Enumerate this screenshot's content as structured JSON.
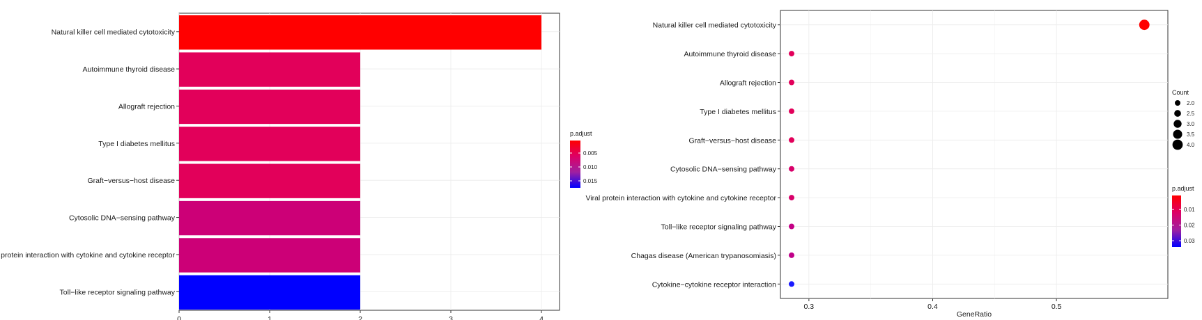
{
  "chart_data": [
    {
      "type": "bar",
      "title": "",
      "xlabel": "",
      "ylabel": "",
      "xlim": [
        0,
        4.2
      ],
      "x_ticks": [
        0,
        1,
        2,
        3,
        4
      ],
      "grid": true,
      "categories": [
        "Natural killer cell mediated cytotoxicity",
        "Autoimmune thyroid disease",
        "Allograft rejection",
        "Type I diabetes mellitus",
        "Graft−versus−host disease",
        "Cytosolic DNA−sensing pathway",
        "Viral protein interaction with cytokine and cytokine receptor",
        "Toll−like receptor signaling pathway"
      ],
      "values": [
        4,
        2,
        2,
        2,
        2,
        2,
        2,
        2
      ],
      "p_adjust": [
        0.0005,
        0.005,
        0.005,
        0.005,
        0.005,
        0.0065,
        0.0065,
        0.0175
      ],
      "bar_colors": [
        "#ff0000",
        "#e2005a",
        "#e2005a",
        "#e2005a",
        "#e2005a",
        "#cc0077",
        "#cc0077",
        "#0000ff"
      ],
      "legend": {
        "title": "p.adjust",
        "position": "right",
        "ticks": [
          "0.005",
          "0.010",
          "0.015"
        ],
        "tick_values": [
          0.005,
          0.01,
          0.015
        ],
        "range": [
          0.0005,
          0.0175
        ],
        "gradient": [
          "#ff0000",
          "#dd0066",
          "#a020a0",
          "#0000ff"
        ]
      }
    },
    {
      "type": "scatter",
      "title": "",
      "xlabel": "GeneRatio",
      "ylabel": "",
      "xlim": [
        0.277,
        0.59
      ],
      "x_ticks": [
        0.3,
        0.4,
        0.5
      ],
      "x_tick_labels": [
        "0.3",
        "0.4",
        "0.5"
      ],
      "grid": true,
      "categories": [
        "Natural killer cell mediated cytotoxicity",
        "Autoimmune thyroid disease",
        "Allograft rejection",
        "Type I diabetes mellitus",
        "Graft−versus−host disease",
        "Cytosolic DNA−sensing pathway",
        "Viral protein interaction with cytokine and cytokine receptor",
        "Toll−like receptor signaling pathway",
        "Chagas disease (American trypanosomiasis)",
        "Cytokine−cytokine receptor interaction"
      ],
      "x": [
        0.571,
        0.286,
        0.286,
        0.286,
        0.286,
        0.286,
        0.286,
        0.286,
        0.286,
        0.286
      ],
      "count": [
        4,
        2,
        2,
        2,
        2,
        2,
        2,
        2,
        2,
        2
      ],
      "p_adjust": [
        0.001,
        0.01,
        0.01,
        0.01,
        0.01,
        0.011,
        0.011,
        0.018,
        0.02,
        0.031
      ],
      "point_colors": [
        "#ff0000",
        "#e2005a",
        "#e2005a",
        "#e2005a",
        "#e2005a",
        "#d8006a",
        "#d8006a",
        "#c40085",
        "#c00088",
        "#1a1aff"
      ],
      "size_legend": {
        "title": "Count",
        "position": "right",
        "labels": [
          "2.0",
          "2.5",
          "3.0",
          "3.5",
          "4.0"
        ],
        "values": [
          2.0,
          2.5,
          3.0,
          3.5,
          4.0
        ]
      },
      "color_legend": {
        "title": "p.adjust",
        "position": "right",
        "ticks": [
          "0.01",
          "0.02",
          "0.03"
        ],
        "tick_values": [
          0.01,
          0.02,
          0.03
        ],
        "range": [
          0.001,
          0.034
        ],
        "gradient": [
          "#ff0000",
          "#dd0066",
          "#a020a0",
          "#0000ff"
        ]
      }
    }
  ]
}
